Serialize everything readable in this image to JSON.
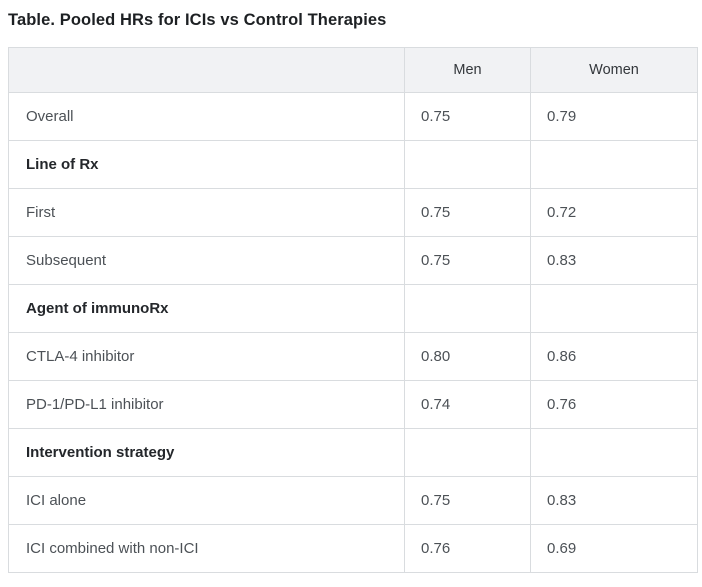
{
  "title": "Table. Pooled HRs for ICIs vs Control Therapies",
  "table": {
    "columns": [
      "",
      "Men",
      "Women"
    ],
    "rows": [
      {
        "type": "data",
        "label": "Overall",
        "men": "0.75",
        "women": "0.79"
      },
      {
        "type": "section",
        "label": "Line of Rx",
        "men": "",
        "women": ""
      },
      {
        "type": "data",
        "label": "First",
        "men": "0.75",
        "women": "0.72"
      },
      {
        "type": "data",
        "label": "Subsequent",
        "men": "0.75",
        "women": "0.83"
      },
      {
        "type": "section",
        "label": "Agent of immunoRx",
        "men": "",
        "women": ""
      },
      {
        "type": "data",
        "label": "CTLA-4 inhibitor",
        "men": "0.80",
        "women": "0.86"
      },
      {
        "type": "data",
        "label": "PD-1/PD-L1 inhibitor",
        "men": "0.74",
        "women": "0.76"
      },
      {
        "type": "section",
        "label": "Intervention strategy",
        "men": "",
        "women": ""
      },
      {
        "type": "data",
        "label": "ICI alone",
        "men": "0.75",
        "women": "0.83"
      },
      {
        "type": "data",
        "label": "ICI combined with non-ICI",
        "men": "0.76",
        "women": "0.69"
      }
    ]
  },
  "colors": {
    "header_background": "#f1f2f4",
    "border": "#d9dcdf",
    "title_text": "#1d2023",
    "body_text": "#4c5156",
    "section_text": "#24272b"
  }
}
